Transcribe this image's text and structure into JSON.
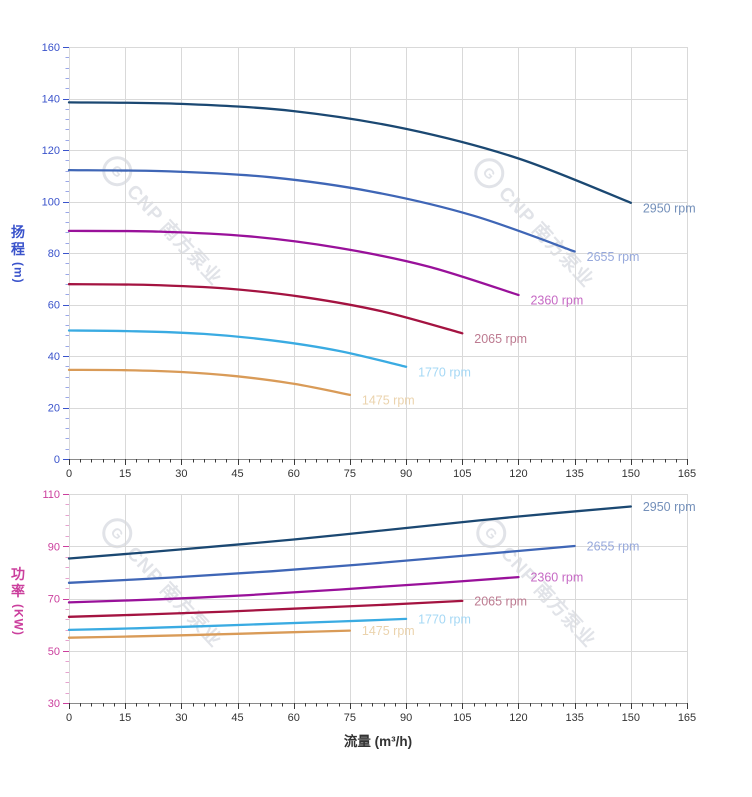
{
  "watermark": {
    "logo": "G",
    "text": "CNP 南方泵业"
  },
  "axes": {
    "flow_title": "流量 (m³/h)",
    "head_chars": [
      "扬",
      "程"
    ],
    "head_unit": "(m)",
    "power_chars": [
      "功",
      "率"
    ],
    "power_unit": "(KW)"
  },
  "colors": {
    "grid": "#d9d9d9",
    "axis_line": "#8a8a8a",
    "x_tick": "#3a3a3a",
    "x_tick_label": "#333333",
    "head_axis": "#3a53cb",
    "head_minor_tick": "#9aa7e8",
    "power_axis": "#cb3f9d",
    "power_minor_tick": "#e6a2cf"
  },
  "chart_data": [
    {
      "type": "line",
      "name": "head",
      "title": "",
      "xlabel": "",
      "ylabel": "扬程 (m)",
      "xlim": [
        0,
        165
      ],
      "ylim": [
        0,
        160
      ],
      "x_tick_step": 15,
      "x_minor_step": 3,
      "y_tick_step": 20,
      "y_minor_step": 4,
      "grid": true,
      "legend_position": "curve-end",
      "series": [
        {
          "name": "2950 rpm",
          "rpm": 2950,
          "color": "#1b4872",
          "label_color": "#7490ba",
          "points": [
            [
              0,
              138.5
            ],
            [
              30,
              137.9
            ],
            [
              60,
              135.1
            ],
            [
              90,
              128.2
            ],
            [
              120,
              116.7
            ],
            [
              150,
              99.5
            ]
          ]
        },
        {
          "name": "2655 rpm",
          "rpm": 2655,
          "color": "#3f66b6",
          "label_color": "#97a9dc",
          "points": [
            [
              0,
              112.2
            ],
            [
              27,
              111.7
            ],
            [
              54,
              109.4
            ],
            [
              81,
              103.8
            ],
            [
              108,
              94.5
            ],
            [
              135,
              80.6
            ]
          ]
        },
        {
          "name": "2360 rpm",
          "rpm": 2360,
          "color": "#99119a",
          "label_color": "#c669c4",
          "points": [
            [
              0,
              88.6
            ],
            [
              24,
              88.3
            ],
            [
              48,
              86.5
            ],
            [
              72,
              82.0
            ],
            [
              96,
              74.7
            ],
            [
              120,
              63.7
            ]
          ]
        },
        {
          "name": "2065 rpm",
          "rpm": 2065,
          "color": "#a41341",
          "label_color": "#bd7b91",
          "points": [
            [
              0,
              67.9
            ],
            [
              21,
              67.6
            ],
            [
              42,
              66.2
            ],
            [
              63,
              62.8
            ],
            [
              84,
              57.2
            ],
            [
              105,
              48.8
            ]
          ]
        },
        {
          "name": "1770 rpm",
          "rpm": 1770,
          "color": "#3aabe2",
          "label_color": "#a5d8f5",
          "points": [
            [
              0,
              49.9
            ],
            [
              18,
              49.6
            ],
            [
              36,
              48.6
            ],
            [
              54,
              46.1
            ],
            [
              72,
              42.0
            ],
            [
              90,
              35.8
            ]
          ]
        },
        {
          "name": "1475 rpm",
          "rpm": 1475,
          "color": "#d99b58",
          "label_color": "#ebd3ad",
          "points": [
            [
              0,
              34.6
            ],
            [
              15,
              34.5
            ],
            [
              30,
              33.8
            ],
            [
              45,
              32.1
            ],
            [
              60,
              29.2
            ],
            [
              75,
              24.9
            ]
          ]
        }
      ]
    },
    {
      "type": "line",
      "name": "power",
      "title": "",
      "xlabel": "流量 (m³/h)",
      "ylabel": "功率 (KW)",
      "xlim": [
        0,
        165
      ],
      "ylim": [
        30,
        110
      ],
      "x_tick_step": 15,
      "x_minor_step": 3,
      "y_tick_step": 20,
      "y_minor_step": 4,
      "grid": true,
      "legend_position": "curve-end",
      "series": [
        {
          "name": "2950 rpm",
          "rpm": 2950,
          "color": "#1b4872",
          "label_color": "#7490ba",
          "points": [
            [
              0,
              85.3
            ],
            [
              30,
              88.8
            ],
            [
              60,
              92.6
            ],
            [
              90,
              97.0
            ],
            [
              120,
              101.4
            ],
            [
              150,
              105.2
            ]
          ]
        },
        {
          "name": "2655 rpm",
          "rpm": 2655,
          "color": "#3f66b6",
          "label_color": "#97a9dc",
          "points": [
            [
              0,
              76.0
            ],
            [
              27,
              78.0
            ],
            [
              54,
              80.4
            ],
            [
              81,
              83.4
            ],
            [
              108,
              86.7
            ],
            [
              135,
              90.1
            ]
          ]
        },
        {
          "name": "2360 rpm",
          "rpm": 2360,
          "color": "#99119a",
          "label_color": "#c669c4",
          "points": [
            [
              0,
              68.5
            ],
            [
              24,
              69.7
            ],
            [
              48,
              71.3
            ],
            [
              72,
              73.4
            ],
            [
              96,
              75.7
            ],
            [
              120,
              78.2
            ]
          ]
        },
        {
          "name": "2065 rpm",
          "rpm": 2065,
          "color": "#a41341",
          "label_color": "#bd7b91",
          "points": [
            [
              0,
              63.0
            ],
            [
              21,
              63.9
            ],
            [
              42,
              65.0
            ],
            [
              63,
              66.3
            ],
            [
              84,
              67.6
            ],
            [
              105,
              69.1
            ]
          ]
        },
        {
          "name": "1770 rpm",
          "rpm": 1770,
          "color": "#3aabe2",
          "label_color": "#a5d8f5",
          "points": [
            [
              0,
              58.0
            ],
            [
              18,
              58.6
            ],
            [
              36,
              59.4
            ],
            [
              54,
              60.3
            ],
            [
              72,
              61.2
            ],
            [
              90,
              62.2
            ]
          ]
        },
        {
          "name": "1475 rpm",
          "rpm": 1475,
          "color": "#d99b58",
          "label_color": "#ebd3ad",
          "points": [
            [
              0,
              55.0
            ],
            [
              15,
              55.4
            ],
            [
              30,
              55.9
            ],
            [
              45,
              56.5
            ],
            [
              60,
              57.1
            ],
            [
              75,
              57.7
            ]
          ]
        }
      ]
    }
  ]
}
